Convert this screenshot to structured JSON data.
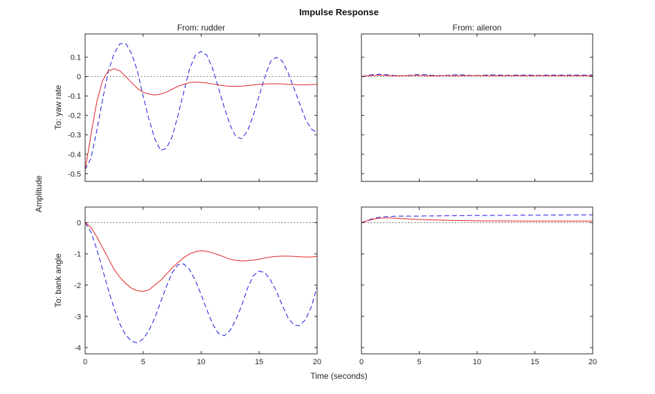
{
  "figure": {
    "title": "Impulse Response",
    "xlabel": "Time (seconds)",
    "ylabel": "Amplitude"
  },
  "colors": {
    "solid_line": "#e02020",
    "dashed_line": "#1414dc",
    "zero_line": "#333333",
    "axes_box": "#262626"
  },
  "chart_data": [
    {
      "type": "line",
      "position": "top-left",
      "title": "From: rudder",
      "row_label": "To: yaw rate",
      "xlim": [
        0,
        20
      ],
      "ylim": [
        -0.54,
        0.22
      ],
      "xticks": [
        0,
        5,
        10,
        15,
        20
      ],
      "yticks": [
        0.1,
        0,
        -0.1,
        -0.2,
        -0.3,
        -0.4,
        -0.5
      ],
      "show_xtick_labels": false,
      "show_ytick_labels": true,
      "zero_line": true,
      "x": [
        0,
        0.5,
        1,
        1.5,
        2,
        2.5,
        3,
        3.5,
        4,
        4.5,
        5,
        5.5,
        6,
        6.5,
        7,
        7.5,
        8,
        8.5,
        9,
        9.5,
        10,
        10.5,
        11,
        11.5,
        12,
        12.5,
        13,
        13.5,
        14,
        14.5,
        15,
        15.5,
        16,
        16.5,
        17,
        17.5,
        18,
        18.5,
        19,
        19.5,
        20
      ],
      "series": [
        {
          "name": "dashed-model",
          "style": "dashed",
          "values": [
            -0.48,
            -0.42,
            -0.28,
            -0.12,
            0.03,
            0.12,
            0.17,
            0.17,
            0.12,
            0.03,
            -0.1,
            -0.22,
            -0.32,
            -0.38,
            -0.37,
            -0.31,
            -0.2,
            -0.08,
            0.04,
            0.11,
            0.13,
            0.11,
            0.04,
            -0.06,
            -0.16,
            -0.25,
            -0.31,
            -0.32,
            -0.28,
            -0.2,
            -0.1,
            0.0,
            0.08,
            0.1,
            0.08,
            0.02,
            -0.06,
            -0.14,
            -0.22,
            -0.27,
            -0.29
          ]
        },
        {
          "name": "solid-model",
          "style": "solid",
          "values": [
            -0.48,
            -0.3,
            -0.13,
            -0.02,
            0.03,
            0.04,
            0.03,
            0.0,
            -0.03,
            -0.06,
            -0.08,
            -0.09,
            -0.095,
            -0.09,
            -0.08,
            -0.065,
            -0.05,
            -0.04,
            -0.03,
            -0.028,
            -0.03,
            -0.033,
            -0.038,
            -0.043,
            -0.047,
            -0.05,
            -0.05,
            -0.049,
            -0.046,
            -0.043,
            -0.04,
            -0.038,
            -0.037,
            -0.037,
            -0.038,
            -0.04,
            -0.041,
            -0.042,
            -0.042,
            -0.041,
            -0.04
          ]
        }
      ]
    },
    {
      "type": "line",
      "position": "top-right",
      "title": "From: aileron",
      "row_label": "",
      "xlim": [
        0,
        20
      ],
      "ylim": [
        -0.54,
        0.22
      ],
      "xticks": [
        0,
        5,
        10,
        15,
        20
      ],
      "yticks": [
        0.1,
        0,
        -0.1,
        -0.2,
        -0.3,
        -0.4,
        -0.5
      ],
      "show_xtick_labels": false,
      "show_ytick_labels": false,
      "zero_line": true,
      "x": [
        0,
        0.5,
        1,
        1.5,
        2,
        2.5,
        3,
        3.5,
        4,
        4.5,
        5,
        5.5,
        6,
        6.5,
        7,
        7.5,
        8,
        8.5,
        9,
        9.5,
        10,
        10.5,
        11,
        11.5,
        12,
        12.5,
        13,
        13.5,
        14,
        14.5,
        15,
        15.5,
        16,
        16.5,
        17,
        17.5,
        18,
        18.5,
        19,
        19.5,
        20
      ],
      "series": [
        {
          "name": "dashed-model",
          "style": "dashed",
          "values": [
            0,
            0.006,
            0.01,
            0.012,
            0.011,
            0.008,
            0.005,
            0.004,
            0.006,
            0.009,
            0.011,
            0.01,
            0.007,
            0.005,
            0.005,
            0.007,
            0.009,
            0.01,
            0.008,
            0.006,
            0.006,
            0.007,
            0.009,
            0.009,
            0.008,
            0.007,
            0.007,
            0.008,
            0.008,
            0.008,
            0.007,
            0.007,
            0.008,
            0.008,
            0.008,
            0.008,
            0.008,
            0.008,
            0.008,
            0.008,
            0.008
          ]
        },
        {
          "name": "solid-model",
          "style": "solid",
          "values": [
            0,
            0.004,
            0.006,
            0.007,
            0.006,
            0.005,
            0.004,
            0.004,
            0.005,
            0.006,
            0.006,
            0.005,
            0.004,
            0.004,
            0.005,
            0.005,
            0.005,
            0.005,
            0.005,
            0.005,
            0.005,
            0.005,
            0.005,
            0.005,
            0.005,
            0.005,
            0.005,
            0.005,
            0.005,
            0.005,
            0.005,
            0.005,
            0.005,
            0.005,
            0.005,
            0.005,
            0.005,
            0.005,
            0.005,
            0.005,
            0.005
          ]
        }
      ]
    },
    {
      "type": "line",
      "position": "bottom-left",
      "title": "",
      "row_label": "To: bank angle",
      "xlim": [
        0,
        20
      ],
      "ylim": [
        -4.2,
        0.5
      ],
      "xticks": [
        0,
        5,
        10,
        15,
        20
      ],
      "yticks": [
        0,
        -1,
        -2,
        -3,
        -4
      ],
      "show_xtick_labels": true,
      "show_ytick_labels": true,
      "zero_line": true,
      "x": [
        0,
        0.5,
        1,
        1.5,
        2,
        2.5,
        3,
        3.5,
        4,
        4.5,
        5,
        5.5,
        6,
        6.5,
        7,
        7.5,
        8,
        8.5,
        9,
        9.5,
        10,
        10.5,
        11,
        11.5,
        12,
        12.5,
        13,
        13.5,
        14,
        14.5,
        15,
        15.5,
        16,
        16.5,
        17,
        17.5,
        18,
        18.5,
        19,
        19.5,
        20
      ],
      "series": [
        {
          "name": "dashed-model",
          "style": "dashed",
          "values": [
            0,
            -0.3,
            -0.85,
            -1.5,
            -2.15,
            -2.75,
            -3.25,
            -3.6,
            -3.8,
            -3.85,
            -3.72,
            -3.45,
            -3.05,
            -2.55,
            -2.05,
            -1.6,
            -1.35,
            -1.32,
            -1.5,
            -1.85,
            -2.3,
            -2.8,
            -3.25,
            -3.55,
            -3.62,
            -3.45,
            -3.1,
            -2.65,
            -2.1,
            -1.7,
            -1.55,
            -1.6,
            -1.85,
            -2.2,
            -2.65,
            -3.05,
            -3.28,
            -3.3,
            -3.1,
            -2.7,
            -2.05
          ]
        },
        {
          "name": "solid-model",
          "style": "solid",
          "values": [
            0,
            -0.15,
            -0.45,
            -0.8,
            -1.15,
            -1.5,
            -1.75,
            -1.95,
            -2.1,
            -2.18,
            -2.2,
            -2.15,
            -2.0,
            -1.85,
            -1.65,
            -1.45,
            -1.28,
            -1.12,
            -1.0,
            -0.93,
            -0.9,
            -0.92,
            -0.97,
            -1.03,
            -1.1,
            -1.17,
            -1.21,
            -1.23,
            -1.22,
            -1.2,
            -1.17,
            -1.13,
            -1.1,
            -1.08,
            -1.07,
            -1.07,
            -1.08,
            -1.09,
            -1.1,
            -1.1,
            -1.08
          ]
        }
      ]
    },
    {
      "type": "line",
      "position": "bottom-right",
      "title": "",
      "row_label": "",
      "xlim": [
        0,
        20
      ],
      "ylim": [
        -4.2,
        0.5
      ],
      "xticks": [
        0,
        5,
        10,
        15,
        20
      ],
      "yticks": [
        0,
        -1,
        -2,
        -3,
        -4
      ],
      "show_xtick_labels": true,
      "show_ytick_labels": false,
      "zero_line": true,
      "x": [
        0,
        0.5,
        1,
        1.5,
        2,
        2.5,
        3,
        3.5,
        4,
        4.5,
        5,
        5.5,
        6,
        6.5,
        7,
        7.5,
        8,
        8.5,
        9,
        9.5,
        10,
        10.5,
        11,
        11.5,
        12,
        12.5,
        13,
        13.5,
        14,
        14.5,
        15,
        15.5,
        16,
        16.5,
        17,
        17.5,
        18,
        18.5,
        19,
        19.5,
        20
      ],
      "series": [
        {
          "name": "dashed-model",
          "style": "dashed",
          "values": [
            0,
            0.07,
            0.13,
            0.17,
            0.19,
            0.2,
            0.21,
            0.21,
            0.21,
            0.21,
            0.21,
            0.215,
            0.215,
            0.215,
            0.22,
            0.22,
            0.22,
            0.225,
            0.225,
            0.23,
            0.23,
            0.23,
            0.232,
            0.233,
            0.235,
            0.235,
            0.237,
            0.238,
            0.24,
            0.24,
            0.24,
            0.242,
            0.243,
            0.245,
            0.245,
            0.246,
            0.247,
            0.248,
            0.248,
            0.25,
            0.25
          ]
        },
        {
          "name": "solid-model",
          "style": "solid",
          "values": [
            0,
            0.06,
            0.11,
            0.14,
            0.15,
            0.15,
            0.14,
            0.13,
            0.12,
            0.11,
            0.1,
            0.095,
            0.09,
            0.085,
            0.08,
            0.075,
            0.07,
            0.068,
            0.065,
            0.063,
            0.06,
            0.058,
            0.057,
            0.056,
            0.055,
            0.054,
            0.053,
            0.052,
            0.052,
            0.051,
            0.051,
            0.05,
            0.05,
            0.05,
            0.05,
            0.05,
            0.05,
            0.05,
            0.05,
            0.05,
            0.05
          ]
        }
      ]
    }
  ]
}
